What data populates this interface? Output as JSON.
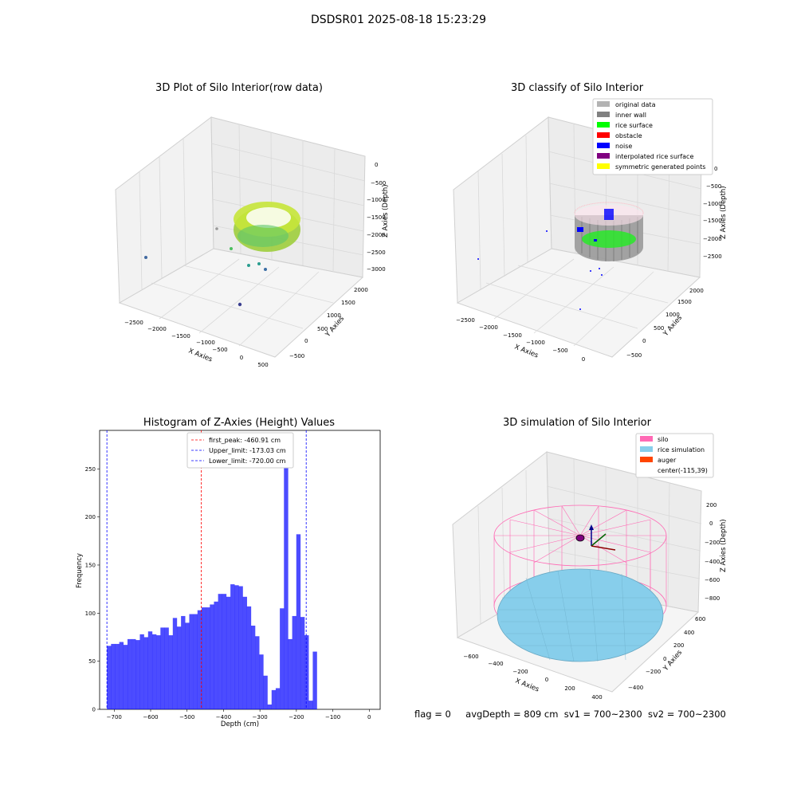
{
  "suptitle": "DSDSR01 2025-08-18 15:23:29",
  "panels": {
    "p1": {
      "title": "3D Plot of Silo Interior(row data)",
      "xlabel": "X Axies",
      "ylabel": "Y Axies",
      "zlabel": "Z Axies (Depth)",
      "xticks": [
        "−2500",
        "−2000",
        "−1500",
        "−1000",
        "−500",
        "0",
        "500"
      ],
      "yticks": [
        "−500",
        "0",
        "500",
        "1000",
        "1500",
        "2000"
      ],
      "zticks": [
        "0",
        "−500",
        "−1000",
        "−1500",
        "−2000",
        "−2500",
        "−3000"
      ]
    },
    "p2": {
      "title": "3D classify of Silo Interior",
      "xlabel": "X Axies",
      "ylabel": "Y Axies",
      "zlabel": "Z Axies (Depth)",
      "xticks": [
        "−2500",
        "−2000",
        "−1500",
        "−1000",
        "−500",
        "0"
      ],
      "yticks": [
        "−500",
        "0",
        "500",
        "1000",
        "1500",
        "2000"
      ],
      "zticks": [
        "0",
        "−500",
        "−1000",
        "−1500",
        "−2000",
        "−2500"
      ],
      "legend": [
        {
          "label": "original data",
          "color": "#b3b3b3"
        },
        {
          "label": "inner wall",
          "color": "#808080"
        },
        {
          "label": "rice surface",
          "color": "#00ff00"
        },
        {
          "label": "obstacle",
          "color": "#ff0000"
        },
        {
          "label": "noise",
          "color": "#0000ff"
        },
        {
          "label": "interpolated rice surface",
          "color": "#800080"
        },
        {
          "label": "symmetric generated points",
          "color": "#ffff00"
        }
      ]
    },
    "p4": {
      "title": "3D simulation of Silo Interior",
      "xlabel": "X Axies",
      "ylabel": "Y Axies",
      "zlabel": "Z Axies (Depth)",
      "xticks": [
        "−600",
        "−400",
        "−200",
        "0",
        "200",
        "400"
      ],
      "yticks": [
        "−400",
        "−200",
        "0",
        "200",
        "400",
        "600"
      ],
      "zticks": [
        "200",
        "0",
        "−200",
        "−400",
        "−600",
        "−800"
      ],
      "legend": [
        {
          "label": "silo",
          "color": "#ff69b4"
        },
        {
          "label": "rice simulation",
          "color": "#87ceeb"
        },
        {
          "label": "auger",
          "color": "#ff4500"
        },
        {
          "label": "center(-115,39)",
          "color": ""
        }
      ]
    }
  },
  "footer": {
    "flag": "flag = 0",
    "avg": "avgDepth = 809 cm",
    "sv1": "sv1 = 700~2300",
    "sv2": "sv2 = 700~2300"
  },
  "chart_data": [
    {
      "type": "bar",
      "title": "Histogram of Z-Axies (Height) Values",
      "xlabel": "Depth (cm)",
      "ylabel": "Frequency",
      "xlim": [
        -740,
        30
      ],
      "ylim": [
        0,
        290
      ],
      "xticks": [
        -700,
        -600,
        -500,
        -400,
        -300,
        -200,
        -100,
        0
      ],
      "yticks": [
        0,
        50,
        100,
        150,
        200,
        250
      ],
      "bin_start": -720,
      "bin_width": 11.3,
      "color": "#0000ff",
      "values": [
        66,
        68,
        68,
        70,
        67,
        73,
        73,
        72,
        78,
        75,
        81,
        78,
        77,
        85,
        85,
        77,
        95,
        86,
        97,
        90,
        99,
        99,
        103,
        106,
        106,
        109,
        112,
        120,
        120,
        117,
        130,
        129,
        128,
        117,
        107,
        87,
        76,
        57,
        35,
        5,
        20,
        22,
        105,
        275,
        73,
        97,
        182,
        96,
        77,
        9,
        60
      ],
      "vlines": [
        {
          "label": "first_peak: -460.91 cm",
          "x": -460.91,
          "color": "#ff0000"
        },
        {
          "label": "Upper_limit: -173.03 cm",
          "x": -173.03,
          "color": "#0000ff"
        },
        {
          "label": "Lower_limit: -720.00 cm",
          "x": -720.0,
          "color": "#0000ff"
        }
      ]
    }
  ]
}
